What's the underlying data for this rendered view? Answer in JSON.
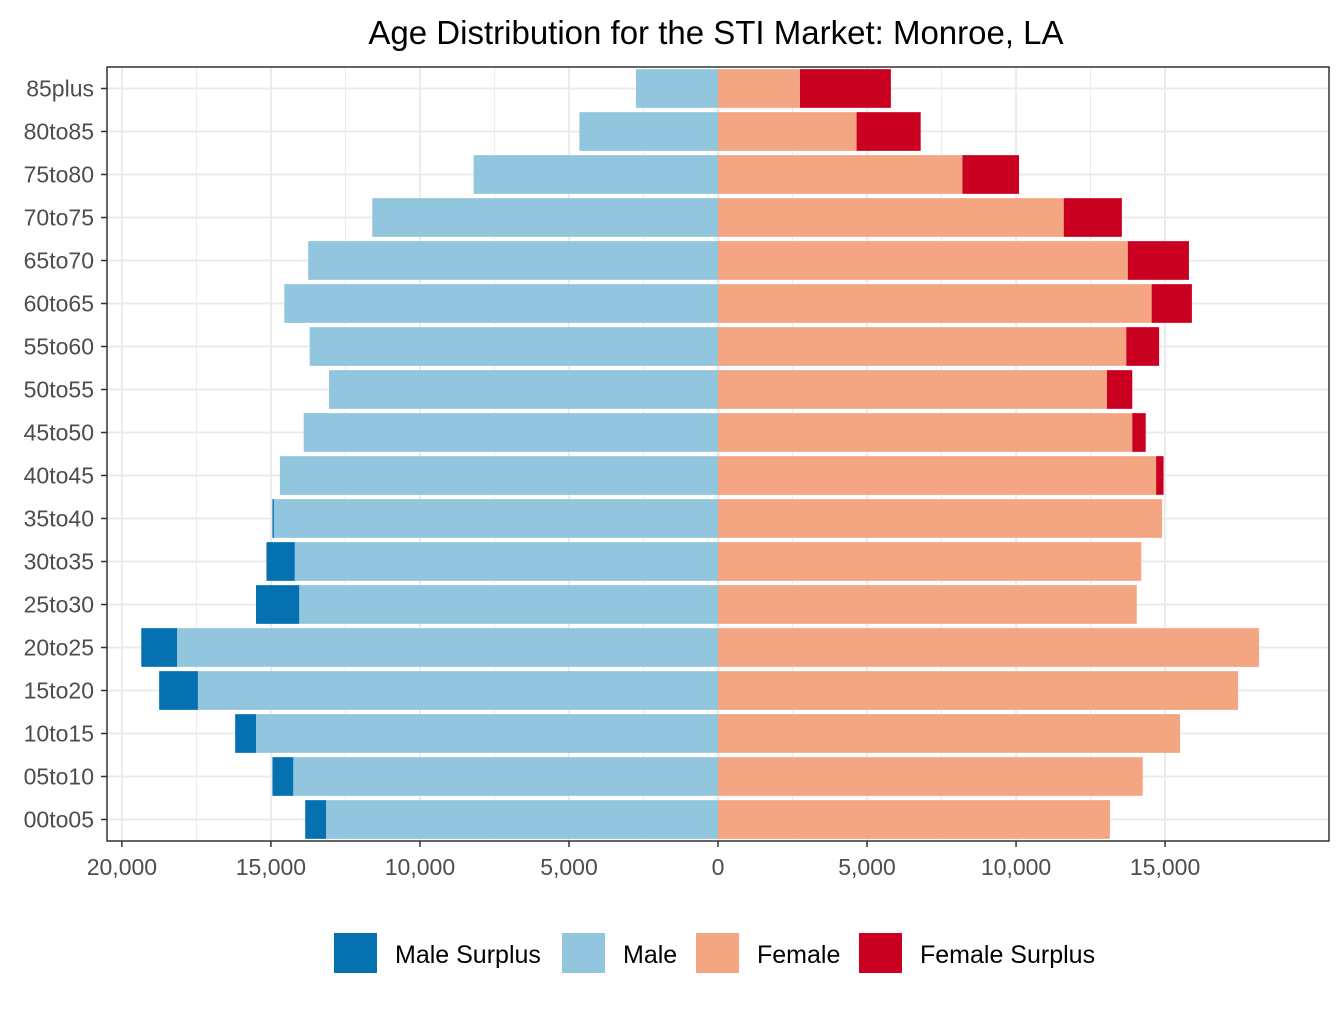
{
  "chart_data": {
    "type": "bar",
    "orientation": "horizontal",
    "title": "Age Distribution for the STI Market: Monroe, LA",
    "xlabel": "",
    "ylabel": "",
    "categories": [
      "00to05",
      "05to10",
      "10to15",
      "15to20",
      "20to25",
      "25to30",
      "30to35",
      "35to40",
      "40to45",
      "45to50",
      "50to55",
      "55to60",
      "60to65",
      "65to70",
      "70to75",
      "75to80",
      "80to85",
      "85plus"
    ],
    "male": [
      13850,
      14950,
      16200,
      18750,
      19350,
      15500,
      15150,
      14950,
      14700,
      13900,
      13050,
      13700,
      14550,
      13750,
      11600,
      8200,
      4650,
      2750
    ],
    "female": [
      13150,
      14250,
      15500,
      17450,
      18150,
      14050,
      14200,
      14900,
      14950,
      14350,
      13900,
      14800,
      15900,
      15800,
      13550,
      10100,
      6800,
      5800
    ],
    "series": [
      {
        "name": "Male Surplus",
        "color": "#0571b0"
      },
      {
        "name": "Male",
        "color": "#92c5de"
      },
      {
        "name": "Female",
        "color": "#f4a582"
      },
      {
        "name": "Female Surplus",
        "color": "#ca0020"
      }
    ],
    "xlim": [
      -20500,
      20500
    ],
    "xticks": [
      -20000,
      -15000,
      -10000,
      -5000,
      0,
      5000,
      10000,
      15000
    ],
    "xtick_labels": [
      "20,000",
      "15,000",
      "10,000",
      "5,000",
      "0",
      "5,000",
      "10,000",
      "15,000"
    ],
    "grid": true,
    "legend_position": "bottom"
  }
}
